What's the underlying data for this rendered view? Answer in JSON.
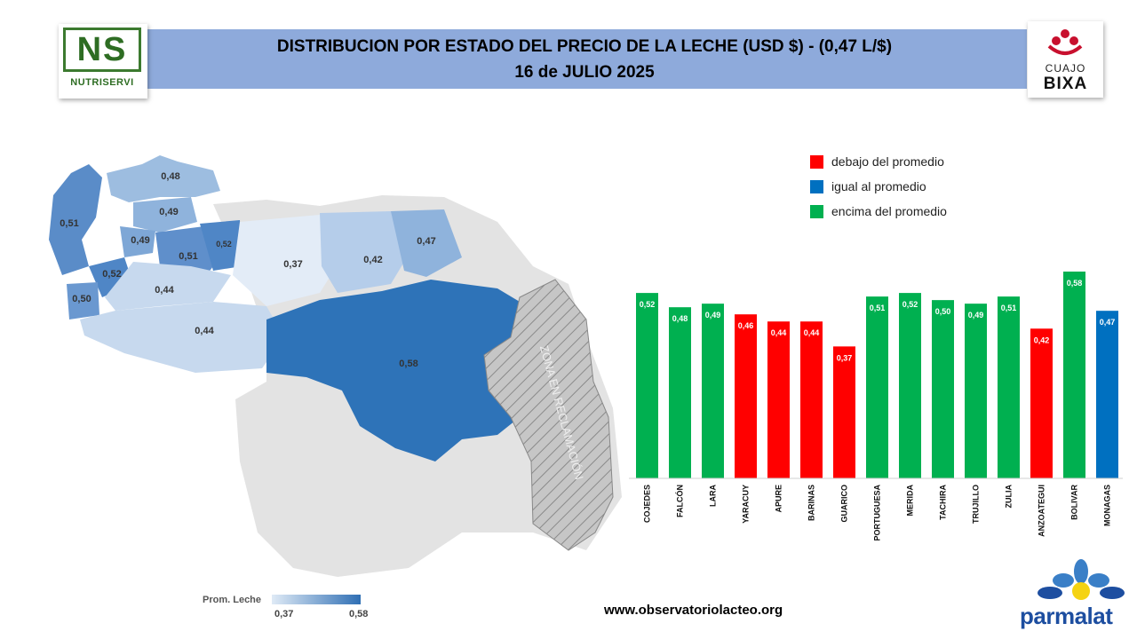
{
  "header": {
    "title_line1": "DISTRIBUCION POR ESTADO DEL PRECIO DE LA LECHE (USD $)  - (0,47 L/$)",
    "title_line2": "16 de JULIO 2025"
  },
  "logos": {
    "left_letters": "NS",
    "left_name": "NUTRISERVI",
    "right_line1": "CUAJO",
    "right_line2": "BIXA",
    "bottom_brand": "parmalat"
  },
  "legend": {
    "items": [
      {
        "label": "debajo del promedio",
        "color": "#ff0000"
      },
      {
        "label": "igual al promedio",
        "color": "#0070c0"
      },
      {
        "label": "encima del promedio",
        "color": "#00b050"
      }
    ]
  },
  "map": {
    "scale_title": "Prom. Leche",
    "scale_min": "0,37",
    "scale_max": "0,58",
    "claim_zone_label": "ZONA EN RECLAMACIÓN",
    "state_values": [
      "0,51",
      "0,48",
      "0,49",
      "0,49",
      "0,51",
      "0,52",
      "0,52",
      "0,50",
      "0,44",
      "0,44",
      "0,37",
      "0,42",
      "0,47",
      "0,58"
    ]
  },
  "footer": {
    "url": "www.observatoriolacteo.org"
  },
  "chart_data": {
    "type": "bar",
    "categories": [
      "COJEDES",
      "FALCÓN",
      "LARA",
      "YARACUY",
      "APURE",
      "BARINAS",
      "GUARICO",
      "PORTUGUESA",
      "MERIDA",
      "TACHIRA",
      "TRUJILLO",
      "ZULIA",
      "ANZOATEGUI",
      "BOLIVAR",
      "MONAGAS"
    ],
    "values": [
      0.52,
      0.48,
      0.49,
      0.46,
      0.44,
      0.44,
      0.37,
      0.51,
      0.52,
      0.5,
      0.49,
      0.51,
      0.42,
      0.58,
      0.47
    ],
    "value_labels": [
      "0,52",
      "0,48",
      "0,49",
      "0,46",
      "0,44",
      "0,44",
      "0,37",
      "0,51",
      "0,52",
      "0,50",
      "0,49",
      "0,51",
      "0,42",
      "0,58",
      "0,47"
    ],
    "colors": [
      "#00b050",
      "#00b050",
      "#00b050",
      "#ff0000",
      "#ff0000",
      "#ff0000",
      "#ff0000",
      "#00b050",
      "#00b050",
      "#00b050",
      "#00b050",
      "#00b050",
      "#ff0000",
      "#00b050",
      "#0070c0"
    ],
    "ylim": [
      0,
      0.58
    ],
    "grid": false,
    "legend_position": "top-right"
  }
}
